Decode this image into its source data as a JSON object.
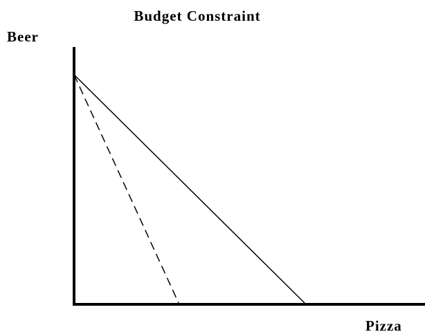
{
  "title": "Budget Constraint",
  "y_axis_label": "Beer",
  "x_axis_label": "Pizza"
}
